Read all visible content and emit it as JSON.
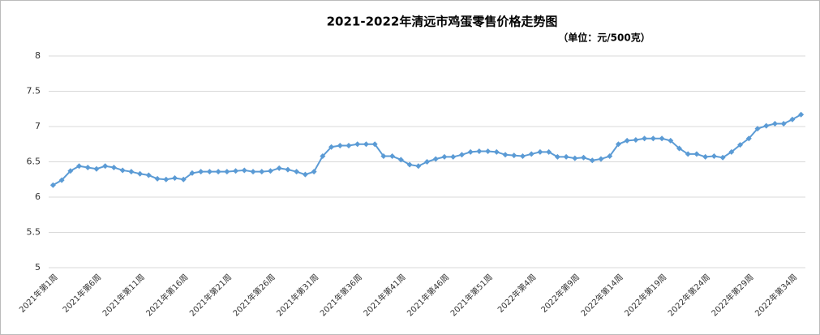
{
  "chart_data": {
    "type": "line",
    "title": "2021-2022年清远市鸡蛋零售价格走势图",
    "subtitle": "（单位：元/500克）",
    "categories": [
      "2021年第1周",
      null,
      null,
      null,
      null,
      "2021年第6周",
      null,
      null,
      null,
      null,
      "2021年第11周",
      null,
      null,
      null,
      null,
      "2021年第16周",
      null,
      null,
      null,
      null,
      "2021年第21周",
      null,
      null,
      null,
      null,
      "2021年第26周",
      null,
      null,
      null,
      null,
      "2021年第31周",
      null,
      null,
      null,
      null,
      "2021年第36周",
      null,
      null,
      null,
      null,
      "2021年第41周",
      null,
      null,
      null,
      null,
      "2021年第46周",
      null,
      null,
      null,
      null,
      "2021年第51周",
      null,
      null,
      null,
      null,
      "2022年第4周",
      null,
      null,
      null,
      null,
      "2022年第9周",
      null,
      null,
      null,
      null,
      "2022年第14周",
      null,
      null,
      null,
      null,
      "2022年第19周",
      null,
      null,
      null,
      null,
      "2022年第24周",
      null,
      null,
      null,
      null,
      "2022年第29周",
      null,
      null,
      null,
      null,
      "2022年第34周",
      null
    ],
    "values": [
      6.17,
      6.24,
      6.37,
      6.44,
      6.42,
      6.4,
      6.44,
      6.42,
      6.38,
      6.36,
      6.33,
      6.31,
      6.26,
      6.25,
      6.27,
      6.25,
      6.34,
      6.36,
      6.36,
      6.36,
      6.36,
      6.37,
      6.38,
      6.36,
      6.36,
      6.37,
      6.41,
      6.39,
      6.36,
      6.32,
      6.36,
      6.58,
      6.71,
      6.73,
      6.73,
      6.75,
      6.75,
      6.75,
      6.58,
      6.58,
      6.53,
      6.46,
      6.44,
      6.5,
      6.54,
      6.57,
      6.57,
      6.6,
      6.64,
      6.65,
      6.65,
      6.64,
      6.6,
      6.59,
      6.58,
      6.61,
      6.64,
      6.64,
      6.57,
      6.57,
      6.55,
      6.56,
      6.52,
      6.54,
      6.58,
      6.75,
      6.8,
      6.81,
      6.83,
      6.83,
      6.83,
      6.8,
      6.69,
      6.61,
      6.61,
      6.57,
      6.58,
      6.56,
      6.64,
      6.74,
      6.83,
      6.97,
      7.01,
      7.04,
      7.04,
      7.1,
      7.17
    ],
    "color": "#5b9bd5",
    "ylim": [
      5,
      8
    ],
    "yticks": [
      5,
      5.5,
      6,
      6.5,
      7,
      7.5,
      8
    ],
    "grid": true
  }
}
